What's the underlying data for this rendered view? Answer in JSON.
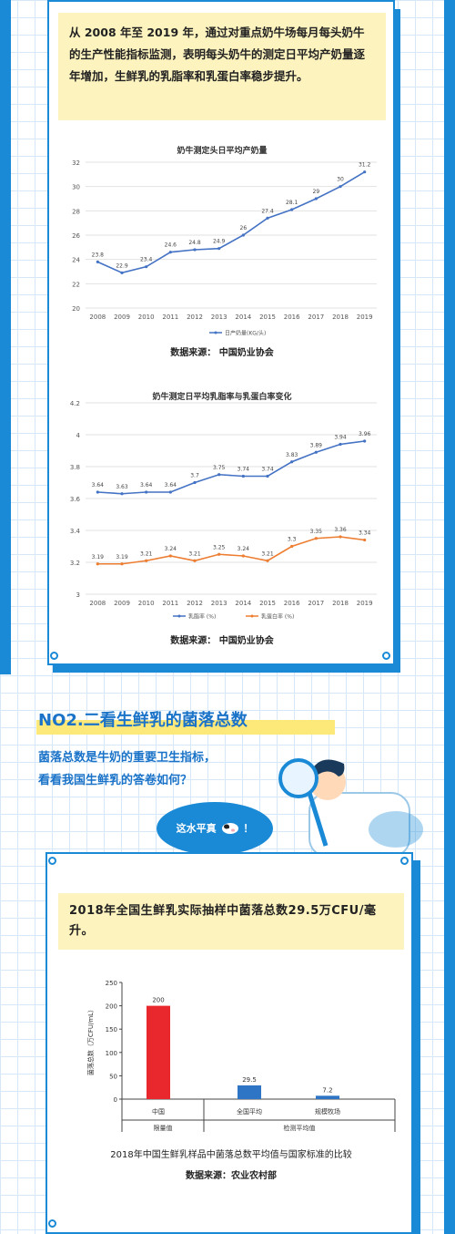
{
  "intro": {
    "text": "从 2008 年至 2019 年，通过对重点奶牛场每月每头奶牛的生产性能指标监测，表明每头奶牛的测定日平均产奶量逐年增加，生鲜乳的乳脂率和乳蛋白率稳步提升。"
  },
  "charts": {
    "milk_yield": {
      "title": "奶牛测定头日平均产奶量",
      "legend": "日产奶量(KG/头)",
      "source": "数据来源： 中国奶业协会"
    },
    "fat_protein": {
      "title": "奶牛测定日平均乳脂率与乳蛋白率变化",
      "legend_fat": "乳脂率 (%)",
      "legend_protein": "乳蛋白率 (%)",
      "source": "数据来源： 中国奶业协会"
    },
    "colony": {
      "ylabel": "菌落总数（万CFU/mL）",
      "group_limit": "限量值",
      "group_avg": "检测平均值",
      "caption": "2018年中国生鲜乳样品中菌落总数平均值与国家标准的比较",
      "source": "数据来源：农业农村部"
    }
  },
  "section2": {
    "heading": "NO2.二看生鲜乳的菌落总数",
    "line1": "菌落总数是牛奶的重要卫生指标，",
    "line2": "看看我国生鲜乳的答卷如何？",
    "bubble": "这水平真",
    "bubble_mark": "！",
    "fact": "2018年全国生鲜乳实际抽样中菌落总数29.5万CFU/毫升。"
  },
  "colors": {
    "accent": "#1a8ad6",
    "line_blue": "#4472c4",
    "line_orange": "#ed7d31",
    "bar_red": "#e8282c",
    "bar_blue": "#2e75c6",
    "highlight": "#fdf3be"
  },
  "chart_data": [
    {
      "type": "line",
      "title": "奶牛测定头日平均产奶量",
      "x": [
        "2008",
        "2009",
        "2010",
        "2011",
        "2012",
        "2013",
        "2014",
        "2015",
        "2016",
        "2017",
        "2018",
        "2019"
      ],
      "series": [
        {
          "name": "日产奶量(KG/头)",
          "values": [
            23.8,
            22.9,
            23.4,
            24.6,
            24.8,
            24.9,
            26.0,
            27.4,
            28.1,
            29.0,
            30.0,
            31.2
          ]
        }
      ],
      "yticks": [
        20,
        22,
        24,
        26,
        28,
        30,
        32
      ],
      "ylim": [
        20,
        32
      ],
      "grid": true,
      "legend": "bottom"
    },
    {
      "type": "line",
      "title": "奶牛测定日平均乳脂率与乳蛋白率变化",
      "x": [
        "2008",
        "2009",
        "2010",
        "2011",
        "2012",
        "2013",
        "2014",
        "2015",
        "2016",
        "2017",
        "2018",
        "2019"
      ],
      "series": [
        {
          "name": "乳脂率 (%)",
          "values": [
            3.64,
            3.63,
            3.64,
            3.64,
            3.7,
            3.75,
            3.74,
            3.74,
            3.83,
            3.89,
            3.94,
            3.96
          ]
        },
        {
          "name": "乳蛋白率 (%)",
          "values": [
            3.19,
            3.19,
            3.21,
            3.24,
            3.21,
            3.25,
            3.24,
            3.21,
            3.3,
            3.35,
            3.36,
            3.34
          ]
        }
      ],
      "yticks": [
        "3",
        "3.2",
        "3.4",
        "3.6",
        "3.8",
        "4",
        "4.2"
      ],
      "ylim": [
        3,
        4.2
      ],
      "grid": true,
      "legend": "bottom"
    },
    {
      "type": "bar",
      "title": "2018年中国生鲜乳样品中菌落总数平均值与国家标准的比较",
      "categories": [
        "中国",
        "全国平均",
        "规模牧场"
      ],
      "values": [
        200,
        29.5,
        7.2
      ],
      "value_labels": [
        "200",
        "29.5",
        "7.2"
      ],
      "ylabel": "菌落总数（万CFU/mL）",
      "yticks": [
        0,
        50,
        100,
        150,
        200,
        250
      ],
      "ylim": [
        0,
        250
      ],
      "groups": [
        "限量值",
        "检测平均值"
      ]
    }
  ]
}
